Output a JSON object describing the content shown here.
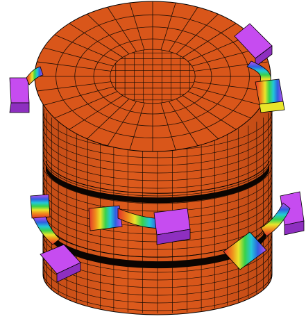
{
  "scene": {
    "colors": {
      "background": "#ffffff",
      "mesh_face": "#d9561a",
      "mesh_face_shadow": "#c84e17",
      "mesh_line": "#1a0d05",
      "groove": "#0b0502",
      "pad_top": "#c64cf0",
      "pad_side": "#8e2fc0"
    },
    "model": {
      "shape": "cylinder-with-two-circumferential-grooves",
      "top_face": "radial-and-square-mesh",
      "side": "quadrilateral-mesh"
    },
    "attachments": [
      {
        "position": "top-right",
        "colormap": "rainbow"
      },
      {
        "position": "left-upper",
        "colormap": "rainbow"
      },
      {
        "position": "left-lower",
        "colormap": "rainbow"
      },
      {
        "position": "front-middle",
        "colormap": "rainbow"
      },
      {
        "position": "right-lower",
        "colormap": "rainbow"
      }
    ]
  }
}
